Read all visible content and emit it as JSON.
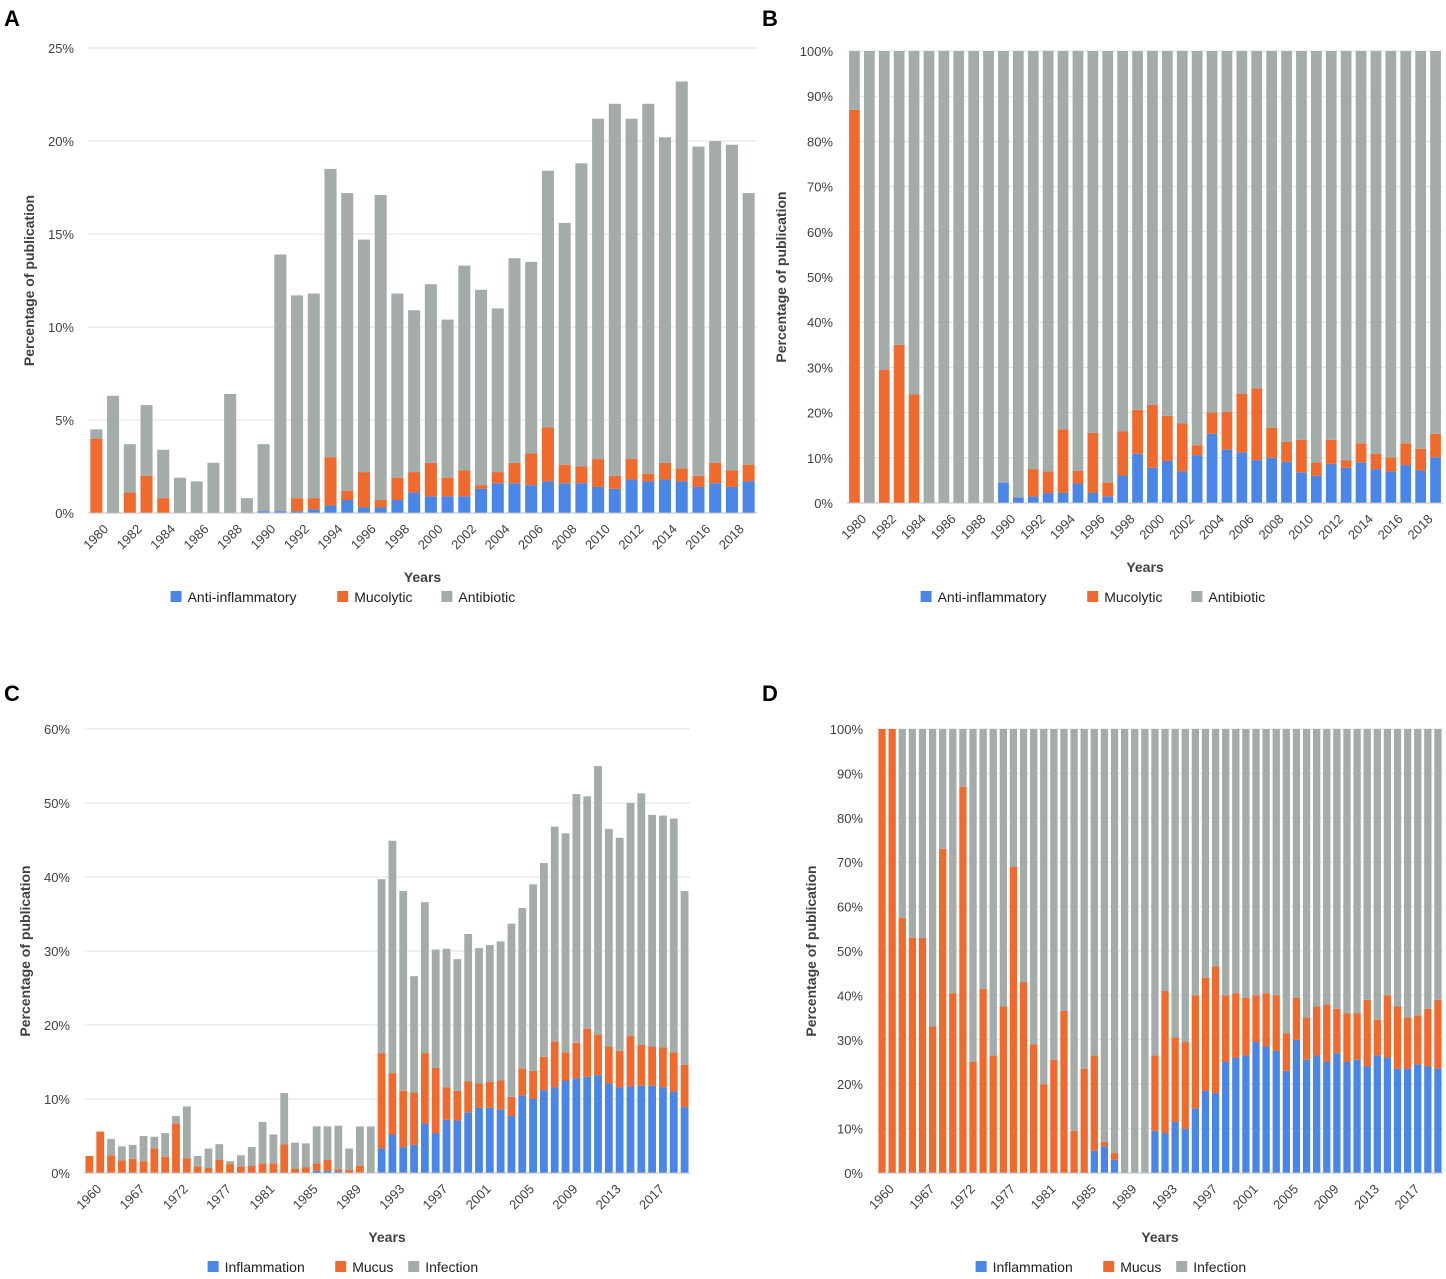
{
  "colors": {
    "anti_inflammatory": "#4a86e8",
    "mucolytic": "#f06a2e",
    "antibiotic": "#a3aca9",
    "grid": "#e2e2e2",
    "axis_text": "#404040"
  },
  "chart_data": [
    {
      "panel": "A",
      "type": "bar",
      "stacked": true,
      "normalized": false,
      "title": "",
      "xlabel": "Years",
      "ylabel": "Percentage of publication",
      "ylim": [
        0,
        25
      ],
      "yticks": [
        "0%",
        "5%",
        "10%",
        "15%",
        "20%",
        "25%"
      ],
      "tick_every": 2,
      "categories": [
        "1980",
        "1981",
        "1982",
        "1983",
        "1984",
        "1985",
        "1986",
        "1987",
        "1988",
        "1989",
        "1990",
        "1991",
        "1992",
        "1993",
        "1994",
        "1995",
        "1996",
        "1997",
        "1998",
        "1999",
        "2000",
        "2001",
        "2002",
        "2003",
        "2004",
        "2005",
        "2006",
        "2007",
        "2008",
        "2009",
        "2010",
        "2011",
        "2012",
        "2013",
        "2014",
        "2015",
        "2016",
        "2017",
        "2018",
        "2019"
      ],
      "series": [
        {
          "name": "Anti-inflammatory",
          "color": "#4a86e8",
          "values": [
            0,
            0,
            0,
            0,
            0,
            0,
            0,
            0,
            0,
            0,
            0.1,
            0.1,
            0.1,
            0.2,
            0.4,
            0.7,
            0.3,
            0.3,
            0.7,
            1.1,
            0.9,
            0.9,
            0.9,
            1.3,
            1.6,
            1.6,
            1.5,
            1.7,
            1.6,
            1.6,
            1.4,
            1.3,
            1.8,
            1.7,
            1.8,
            1.7,
            1.4,
            1.6,
            1.4,
            1.7
          ]
        },
        {
          "name": "Mucolytic",
          "color": "#f06a2e",
          "values": [
            4.0,
            0,
            1.1,
            2.0,
            0.8,
            0,
            0,
            0,
            0,
            0,
            0,
            0,
            0.7,
            0.6,
            2.6,
            0.5,
            1.9,
            0.4,
            1.2,
            1.1,
            1.8,
            1.0,
            1.4,
            0.2,
            0.6,
            1.1,
            1.7,
            2.9,
            1.0,
            0.9,
            1.5,
            0.7,
            1.1,
            0.4,
            0.9,
            0.7,
            0.6,
            1.1,
            0.9,
            0.9
          ]
        },
        {
          "name": "Antibiotic",
          "color": "#a3aca9",
          "values": [
            0.5,
            6.3,
            2.6,
            3.8,
            2.6,
            1.9,
            1.7,
            2.7,
            6.4,
            0.8,
            3.6,
            13.8,
            10.9,
            11.0,
            15.5,
            16.0,
            12.5,
            16.4,
            9.9,
            8.7,
            9.6,
            8.5,
            11.0,
            10.5,
            8.8,
            11.0,
            10.3,
            13.8,
            13.0,
            16.3,
            18.3,
            20.0,
            18.3,
            19.9,
            17.5,
            20.8,
            17.7,
            17.3,
            17.5,
            14.6
          ]
        }
      ],
      "legend": [
        "Anti-inflammatory",
        "Mucolytic",
        "Antibiotic"
      ],
      "legend_position": "bottom"
    },
    {
      "panel": "B",
      "type": "bar",
      "stacked": true,
      "normalized": true,
      "title": "",
      "xlabel": "Years",
      "ylabel": "Percentage of publication",
      "ylim": [
        0,
        100
      ],
      "yticks": [
        "0%",
        "10%",
        "20%",
        "30%",
        "40%",
        "50%",
        "60%",
        "70%",
        "80%",
        "90%",
        "100%"
      ],
      "tick_every": 2,
      "categories": [
        "1980",
        "1981",
        "1982",
        "1983",
        "1984",
        "1985",
        "1986",
        "1987",
        "1988",
        "1989",
        "1990",
        "1991",
        "1992",
        "1993",
        "1994",
        "1995",
        "1996",
        "1997",
        "1998",
        "1999",
        "2000",
        "2001",
        "2002",
        "2003",
        "2004",
        "2005",
        "2006",
        "2007",
        "2008",
        "2009",
        "2010",
        "2011",
        "2012",
        "2013",
        "2014",
        "2015",
        "2016",
        "2017",
        "2018",
        "2019"
      ],
      "series": [
        {
          "name": "Anti-inflammatory",
          "color": "#4a86e8",
          "values": [
            0,
            0,
            0,
            0,
            0,
            0,
            0,
            0,
            0,
            0,
            4.5,
            1.2,
            1.5,
            2.2,
            2.3,
            4.3,
            2.3,
            1.5,
            6.1,
            10.9,
            7.8,
            9.3,
            7.0,
            10.6,
            15.3,
            11.8,
            11.2,
            9.5,
            10.0,
            9.1,
            6.8,
            6.0,
            8.7,
            7.8,
            9.0,
            7.5,
            7.0,
            8.4,
            7.2,
            10.1
          ]
        },
        {
          "name": "Mucolytic",
          "color": "#f06a2e",
          "values": [
            87,
            0,
            29.5,
            35,
            24,
            0,
            0,
            0,
            0,
            0,
            0,
            0,
            6.0,
            4.8,
            14.0,
            2.8,
            13.2,
            3.0,
            9.8,
            9.7,
            13.9,
            10.0,
            10.6,
            2.2,
            4.7,
            8.4,
            13.0,
            15.9,
            6.6,
            4.4,
            7.2,
            3.0,
            5.3,
            1.6,
            4.2,
            3.4,
            3.1,
            4.8,
            4.8,
            5.2
          ]
        },
        {
          "name": "Antibiotic",
          "color": "#a3aca9",
          "values": [
            13,
            100,
            70.5,
            65,
            76,
            100,
            100,
            100,
            100,
            100,
            95.5,
            98.8,
            92.5,
            93.0,
            83.7,
            92.9,
            84.5,
            95.5,
            84.1,
            79.4,
            78.3,
            80.7,
            82.4,
            87.2,
            80.0,
            79.8,
            75.8,
            74.6,
            83.4,
            86.5,
            86.0,
            91.0,
            86.0,
            90.6,
            86.8,
            89.1,
            89.9,
            86.8,
            88.0,
            84.7
          ]
        }
      ],
      "legend": [
        "Anti-inflammatory",
        "Mucolytic",
        "Antibiotic"
      ],
      "legend_position": "bottom"
    },
    {
      "panel": "C",
      "type": "bar",
      "stacked": true,
      "normalized": false,
      "title": "",
      "xlabel": "Years",
      "ylabel": "Percentage of publication",
      "ylim": [
        0,
        60
      ],
      "yticks": [
        "0%",
        "10%",
        "20%",
        "30%",
        "40%",
        "50%",
        "60%"
      ],
      "x_tick_labels": [
        "1960",
        "1967",
        "1972",
        "1977",
        "1981",
        "1985",
        "1989",
        "1993",
        "1997",
        "2001",
        "2005",
        "2009",
        "2013",
        "2017"
      ],
      "x_tick_indices": [
        0,
        4,
        8,
        12,
        16,
        20,
        24,
        28,
        32,
        36,
        40,
        44,
        48,
        52
      ],
      "categories_count": 56,
      "series": [
        {
          "name": "Inflammation",
          "color": "#4a86e8",
          "values": [
            0,
            0,
            0,
            0,
            0,
            0,
            0,
            0,
            0,
            0,
            0,
            0,
            0,
            0,
            0,
            0,
            0,
            0,
            0,
            0,
            0,
            0.3,
            0.3,
            0.2,
            0,
            0.1,
            0,
            3.3,
            5.2,
            3.5,
            3.8,
            6.7,
            5.4,
            7.2,
            7.1,
            8.2,
            8.8,
            8.8,
            8.6,
            7.7,
            10.5,
            10.0,
            11.2,
            11.6,
            12.5,
            12.8,
            13.0,
            13.2,
            12.1,
            11.6,
            11.7,
            11.8,
            11.8,
            11.6,
            11.0,
            8.9
          ]
        },
        {
          "name": "Mucus",
          "color": "#f06a2e",
          "values": [
            2.3,
            5.6,
            2.4,
            1.7,
            1.9,
            1.6,
            3.3,
            2.2,
            6.7,
            2.0,
            0.9,
            0.7,
            1.8,
            1.2,
            0.9,
            1.0,
            1.3,
            1.3,
            3.9,
            0.6,
            0.8,
            1.0,
            1.5,
            0.3,
            0.4,
            0.9,
            0,
            12.9,
            8.3,
            7.6,
            7.1,
            9.5,
            8.8,
            4.4,
            4.0,
            4.2,
            3.3,
            3.5,
            3.9,
            2.6,
            3.6,
            3.8,
            4.5,
            6.2,
            3.8,
            4.8,
            6.5,
            5.5,
            5.0,
            4.9,
            6.8,
            5.5,
            5.3,
            5.4,
            5.3,
            5.7
          ]
        },
        {
          "name": "Infection",
          "color": "#a3aca9",
          "values": [
            0,
            0,
            2.2,
            1.9,
            1.9,
            3.4,
            1.6,
            3.2,
            1.0,
            7.0,
            1.4,
            2.6,
            2.1,
            0.4,
            1.5,
            2.5,
            5.6,
            3.9,
            6.9,
            3.5,
            3.2,
            5.0,
            4.5,
            5.9,
            2.9,
            5.3,
            6.3,
            23.5,
            31.4,
            27.0,
            15.7,
            20.4,
            16.0,
            18.7,
            17.8,
            19.9,
            18.3,
            18.5,
            18.8,
            23.4,
            21.7,
            25.2,
            26.2,
            29.0,
            29.6,
            33.6,
            31.4,
            36.3,
            29.4,
            28.8,
            31.5,
            34.0,
            31.3,
            31.3,
            31.6,
            23.5
          ]
        }
      ],
      "legend": [
        "Inflammation",
        "Mucus",
        "Infection"
      ],
      "legend_position": "bottom"
    },
    {
      "panel": "D",
      "type": "bar",
      "stacked": true,
      "normalized": true,
      "title": "",
      "xlabel": "Years",
      "ylabel": "Percentage of publication",
      "ylim": [
        0,
        100
      ],
      "yticks": [
        "0%",
        "10%",
        "20%",
        "30%",
        "40%",
        "50%",
        "60%",
        "70%",
        "80%",
        "90%",
        "100%"
      ],
      "x_tick_labels": [
        "1960",
        "1967",
        "1972",
        "1977",
        "1981",
        "1985",
        "1989",
        "1993",
        "1997",
        "2001",
        "2005",
        "2009",
        "2013",
        "2017"
      ],
      "x_tick_indices": [
        0,
        4,
        8,
        12,
        16,
        20,
        24,
        28,
        32,
        36,
        40,
        44,
        48,
        52
      ],
      "categories_count": 56,
      "series": [
        {
          "name": "Inflammation",
          "color": "#4a86e8",
          "values": [
            0,
            0,
            0,
            0,
            0,
            0,
            0,
            0,
            0,
            0,
            0,
            0,
            0,
            0,
            0,
            0,
            0,
            0,
            0,
            0,
            0,
            5,
            6,
            3,
            0,
            0,
            0,
            9.5,
            9,
            11.5,
            10,
            14.5,
            18.5,
            18,
            25,
            26,
            26.5,
            29.5,
            28.5,
            27.5,
            23,
            30,
            25.5,
            26.5,
            25,
            27,
            25,
            25.5,
            24,
            26.5,
            26,
            23.5,
            23.5,
            24.5,
            24,
            23.5
          ]
        },
        {
          "name": "Mucus",
          "color": "#f06a2e",
          "values": [
            100,
            100,
            57.5,
            53,
            53,
            33,
            73,
            40.5,
            87,
            25,
            41.5,
            26.5,
            37.5,
            69,
            43,
            29,
            20,
            25.5,
            36.5,
            9.5,
            23.5,
            21.5,
            1,
            1.5,
            0,
            0,
            0,
            17,
            32,
            19,
            19.5,
            25.5,
            25.5,
            28.5,
            15,
            14.5,
            13,
            10.5,
            12,
            12.5,
            8.5,
            9.5,
            9.5,
            11,
            13,
            10,
            11,
            10.5,
            15,
            8,
            14,
            14,
            11.5,
            11,
            13,
            15.5
          ]
        },
        {
          "name": "Infection",
          "color": "#a3aca9",
          "values": [
            0,
            0,
            42.5,
            47,
            47,
            67,
            27,
            59.5,
            13,
            75,
            58.5,
            73.5,
            62.5,
            31,
            57,
            71,
            80,
            74.5,
            63.5,
            90.5,
            76.5,
            73.5,
            93,
            95.5,
            100,
            100,
            100,
            73.5,
            59,
            69.5,
            70.5,
            60,
            56,
            53.5,
            60,
            59.5,
            60.5,
            60,
            59.5,
            60,
            68.5,
            60.5,
            65,
            62.5,
            62,
            63,
            64,
            64,
            61,
            65.5,
            60,
            62.5,
            65,
            64.5,
            63,
            61
          ]
        }
      ],
      "legend": [
        "Inflammation",
        "Mucus",
        "Infection"
      ],
      "legend_position": "bottom"
    }
  ]
}
